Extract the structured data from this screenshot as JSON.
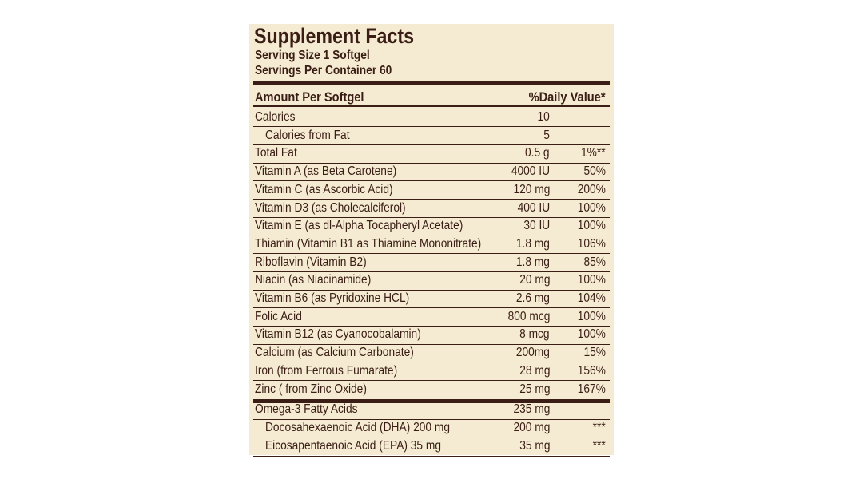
{
  "title": "Supplement Facts",
  "serving_size": "Serving Size 1 Softgel",
  "servings_per_container": "Servings Per Container 60",
  "table": {
    "header": [
      "Amount Per Softgel",
      "%Daily Value*"
    ],
    "sections": [
      [
        {
          "name": "Calories",
          "amount": "10",
          "sub": [
            {
              "name": "Calories from Fat",
              "amount": "5"
            }
          ]
        },
        {
          "name": "Total Fat",
          "amount": "0.5 g",
          "dv": "1%**"
        },
        {
          "name": "Vitamin A (as Beta Carotene)",
          "amount": "4000 IU",
          "dv": "50%"
        },
        {
          "name": "Vitamin C (as Ascorbic Acid)",
          "amount": "120 mg",
          "dv": "200%"
        },
        {
          "name": "Vitamin D3 (as Cholecalciferol)",
          "amount": "400 IU",
          "dv": "100%"
        },
        {
          "name": "Vitamin E (as dl-Alpha Tocapheryl Acetate)",
          "amount": "30 IU",
          "dv": "100%"
        },
        {
          "name": "Thiamin (Vitamin B1 as Thiamine Mononitrate)",
          "amount": "1.8 mg",
          "dv": "106%"
        },
        {
          "name": "Riboflavin (Vitamin B2)",
          "amount": "1.8 mg",
          "dv": "85%"
        },
        {
          "name": "Niacin (as Niacinamide)",
          "amount": "20 mg",
          "dv": "100%"
        },
        {
          "name": "Vitamin B6 (as Pyridoxine HCL)",
          "amount": "2.6 mg",
          "dv": "104%"
        },
        {
          "name": "Folic Acid",
          "amount": "800 mcg",
          "dv": "100%"
        },
        {
          "name": "Vitamin B12 (as Cyanocobalamin)",
          "amount": "8 mcg",
          "dv": "100%"
        },
        {
          "name": "Calcium (as Calcium Carbonate)",
          "amount": "200mg",
          "dv": "15%"
        },
        {
          "name": "Iron (from Ferrous Fumarate)",
          "amount": "28 mg",
          "dv": "156%"
        },
        {
          "name": "Zinc ( from Zinc Oxide)",
          "amount": "25 mg",
          "dv": "167%"
        }
      ],
      [
        {
          "name": "Omega-3 Fatty Acids",
          "amount": "235 mg",
          "sub": [
            {
              "name": "Docosahexaenoic Acid (DHA) 200 mg",
              "amount": "200 mg",
              "dv": "***"
            },
            {
              "name": "Eicosapentaenoic Acid (EPA) 35 mg",
              "amount": "35 mg",
              "dv": "***"
            }
          ]
        }
      ]
    ]
  }
}
